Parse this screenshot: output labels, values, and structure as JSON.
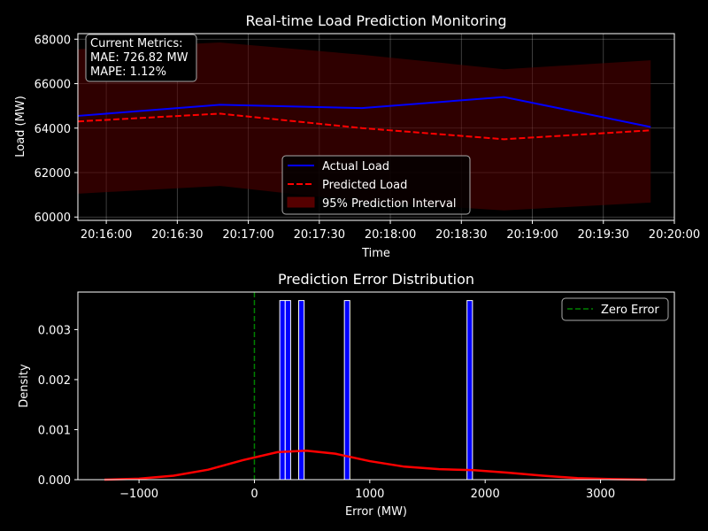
{
  "chart_data": [
    {
      "type": "line",
      "title": "Real-time Load Prediction Monitoring",
      "xlabel": "Time",
      "ylabel": "Load (MW)",
      "x_tick_labels": [
        "20:16:00",
        "20:16:30",
        "20:17:00",
        "20:17:30",
        "20:18:00",
        "20:18:30",
        "20:19:00",
        "20:19:30",
        "20:20:00"
      ],
      "y_tick_labels": [
        "60000",
        "62000",
        "64000",
        "66000",
        "68000"
      ],
      "x_ticks_sec": [
        0,
        30,
        60,
        90,
        120,
        150,
        180,
        210,
        240
      ],
      "y_ticks": [
        60000,
        62000,
        64000,
        66000,
        68000
      ],
      "xlim_sec": [
        -12,
        240
      ],
      "ylim": [
        59850,
        68250
      ],
      "x_sec": [
        -12,
        48,
        108,
        168,
        230
      ],
      "series": [
        {
          "name": "Actual Load",
          "values": [
            64550,
            65050,
            64900,
            65400,
            64050
          ],
          "color": "#0000ff",
          "style": "solid"
        },
        {
          "name": "Predicted Load",
          "values": [
            64300,
            64650,
            64000,
            63500,
            63900
          ],
          "color": "#ff0000",
          "style": "dashed"
        }
      ],
      "interval": {
        "name": "95% Prediction Interval",
        "lower": [
          61050,
          61400,
          60700,
          60300,
          60650
        ],
        "upper": [
          67550,
          67850,
          67300,
          66650,
          67050
        ],
        "color": "#550000"
      },
      "annotation": [
        "Current Metrics:",
        "MAE: 726.82 MW",
        "MAPE: 1.12%"
      ],
      "legend_position": "bottom-center",
      "grid": true
    },
    {
      "type": "histogram",
      "title": "Prediction Error Distribution",
      "xlabel": "Error (MW)",
      "ylabel": "Density",
      "x_tick_labels": [
        "−1000",
        "0",
        "1000",
        "2000",
        "3000"
      ],
      "y_tick_labels": [
        "0.000",
        "0.001",
        "0.002",
        "0.003"
      ],
      "x_ticks": [
        -1000,
        0,
        1000,
        2000,
        3000
      ],
      "y_ticks": [
        0,
        0.001,
        0.002,
        0.003
      ],
      "xlim": [
        -1530,
        3640
      ],
      "ylim": [
        0,
        0.00375
      ],
      "bins": [
        {
          "x0": 220,
          "x1": 267,
          "density": 0.00358
        },
        {
          "x0": 267,
          "x1": 314,
          "density": 0.00358
        },
        {
          "x0": 384,
          "x1": 431,
          "density": 0.00358
        },
        {
          "x0": 780,
          "x1": 827,
          "density": 0.00358
        },
        {
          "x0": 1843,
          "x1": 1890,
          "density": 0.00358
        }
      ],
      "bar_color": "#0000ff",
      "kde": {
        "x": [
          -1300,
          -1000,
          -700,
          -400,
          -100,
          200,
          450,
          700,
          1000,
          1300,
          1600,
          1900,
          2200,
          2500,
          2800,
          3100,
          3400
        ],
        "y": [
          0.0,
          2e-05,
          8e-05,
          0.0002,
          0.00039,
          0.00055,
          0.00058,
          0.00052,
          0.00037,
          0.00026,
          0.00021,
          0.00019,
          0.00014,
          8e-05,
          3e-05,
          1e-05,
          0.0
        ],
        "color": "#ff0000"
      },
      "zero_line": {
        "name": "Zero Error",
        "x": 0,
        "color": "#008000"
      },
      "legend_position": "top-right",
      "grid": false
    }
  ]
}
